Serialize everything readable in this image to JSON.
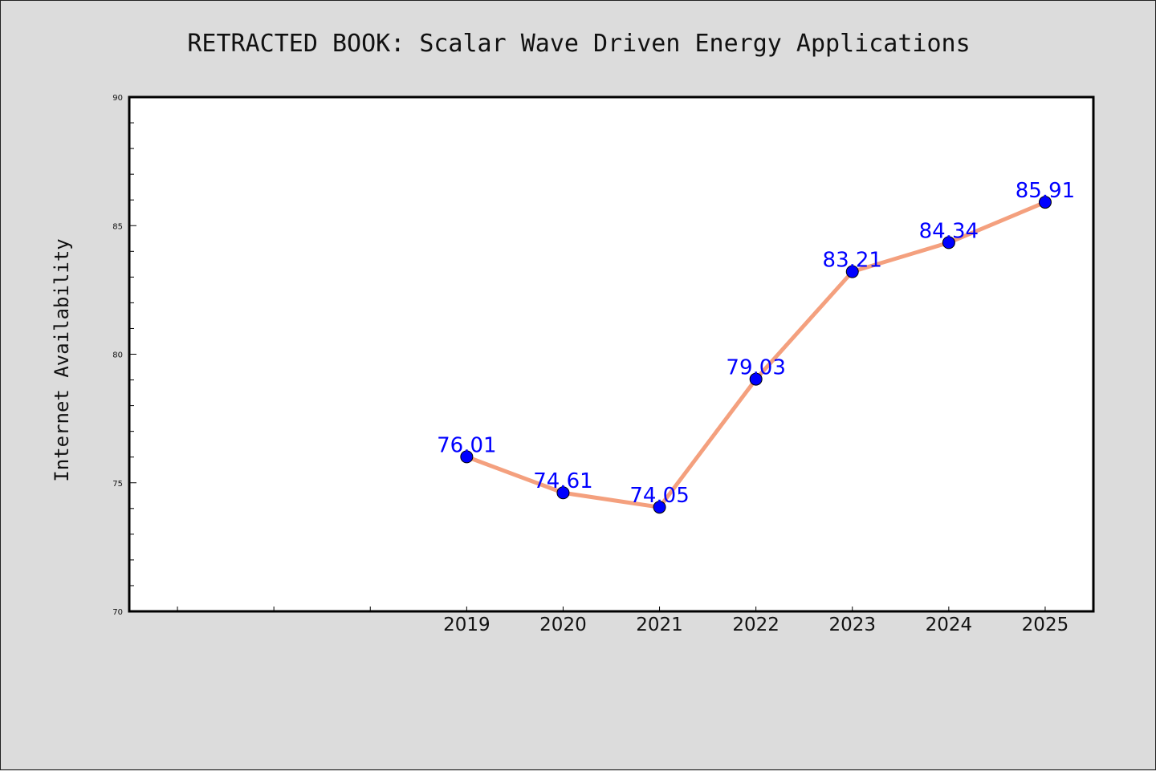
{
  "chart_data": {
    "type": "line",
    "title": "RETRACTED BOOK: Scalar Wave Driven Energy Applications",
    "xlabel": "",
    "ylabel": "Internet Availability",
    "x_slots": 10,
    "categories": [
      "2019",
      "2020",
      "2021",
      "2022",
      "2023",
      "2024",
      "2025"
    ],
    "first_category_slot": 3,
    "values": [
      76.01,
      74.61,
      74.05,
      79.03,
      83.21,
      84.34,
      85.91
    ],
    "data_labels": [
      "76.01",
      "74.61",
      "74.05",
      "79.03",
      "83.21",
      "84.34",
      "85.91"
    ],
    "ylim": [
      70,
      90
    ],
    "yticks": [
      70,
      75,
      80,
      85,
      90
    ],
    "y_minor_step": 1,
    "grid": false,
    "legend": "none",
    "colors": {
      "line": "#f4a07e",
      "marker": "#0000ff",
      "marker_edge": "#000000",
      "label": "#0000ff",
      "plot_bg": "#ffffff",
      "page_bg": "#dcdcdc"
    }
  }
}
